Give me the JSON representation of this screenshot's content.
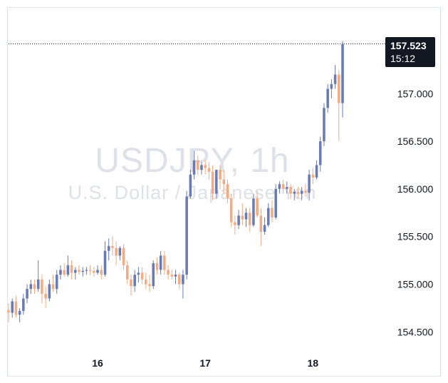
{
  "chart_data": {
    "type": "candlestick",
    "title": "USDJPY, 1h",
    "subtitle": "U.S. Dollar / Japanese Yen",
    "ylim": [
      154.3,
      157.9
    ],
    "y_ticks": [
      "154.500",
      "155.000",
      "155.500",
      "156.000",
      "156.500",
      "157.000"
    ],
    "x_tick_labels": [
      {
        "label": "16",
        "index": 24
      },
      {
        "label": "17",
        "index": 53
      },
      {
        "label": "18",
        "index": 82
      }
    ],
    "last_price": "157.523",
    "countdown": "15:12",
    "up_color": "#6a7bb4",
    "down_color": "#f2ab84",
    "candles": [
      [
        154.73,
        154.8,
        154.6,
        154.7
      ],
      [
        154.7,
        154.85,
        154.65,
        154.82
      ],
      [
        154.82,
        154.88,
        154.65,
        154.68
      ],
      [
        154.68,
        154.75,
        154.6,
        154.72
      ],
      [
        154.72,
        154.9,
        154.68,
        154.85
      ],
      [
        154.85,
        155.0,
        154.8,
        154.95
      ],
      [
        154.95,
        155.05,
        154.9,
        155.0
      ],
      [
        155.0,
        155.05,
        154.9,
        154.95
      ],
      [
        154.95,
        155.25,
        154.92,
        155.05
      ],
      [
        155.05,
        155.1,
        154.8,
        154.9
      ],
      [
        154.9,
        154.98,
        154.75,
        154.85
      ],
      [
        154.85,
        155.05,
        154.82,
        155.0
      ],
      [
        155.0,
        155.1,
        154.92,
        154.95
      ],
      [
        154.95,
        155.15,
        154.9,
        155.1
      ],
      [
        155.1,
        155.2,
        155.05,
        155.15
      ],
      [
        155.15,
        155.22,
        155.08,
        155.1
      ],
      [
        155.1,
        155.3,
        155.08,
        155.2
      ],
      [
        155.2,
        155.25,
        155.05,
        155.12
      ],
      [
        155.12,
        155.18,
        155.05,
        155.15
      ],
      [
        155.15,
        155.2,
        155.1,
        155.13
      ],
      [
        155.13,
        155.18,
        155.08,
        155.14
      ],
      [
        155.14,
        155.18,
        155.1,
        155.15
      ],
      [
        155.15,
        155.2,
        155.1,
        155.14
      ],
      [
        155.14,
        155.18,
        155.08,
        155.12
      ],
      [
        155.12,
        155.2,
        155.1,
        155.15
      ],
      [
        155.15,
        155.2,
        155.05,
        155.1
      ],
      [
        155.1,
        155.45,
        155.08,
        155.35
      ],
      [
        155.35,
        155.48,
        155.25,
        155.4
      ],
      [
        155.4,
        155.5,
        155.3,
        155.38
      ],
      [
        155.38,
        155.45,
        155.2,
        155.3
      ],
      [
        155.3,
        155.4,
        155.25,
        155.38
      ],
      [
        155.38,
        155.42,
        155.15,
        155.2
      ],
      [
        155.2,
        155.25,
        155.0,
        155.05
      ],
      [
        155.05,
        155.1,
        154.88,
        154.98
      ],
      [
        154.98,
        155.15,
        154.92,
        155.1
      ],
      [
        155.1,
        155.18,
        155.02,
        155.12
      ],
      [
        155.12,
        155.18,
        155.0,
        155.05
      ],
      [
        155.05,
        155.12,
        154.95,
        155.0
      ],
      [
        155.0,
        155.1,
        154.92,
        154.98
      ],
      [
        154.98,
        155.25,
        154.95,
        155.22
      ],
      [
        155.22,
        155.28,
        155.1,
        155.15
      ],
      [
        155.15,
        155.35,
        155.1,
        155.3
      ],
      [
        155.3,
        155.35,
        155.1,
        155.15
      ],
      [
        155.15,
        155.2,
        155.05,
        155.1
      ],
      [
        155.1,
        155.15,
        155.05,
        155.08
      ],
      [
        155.08,
        155.15,
        155.0,
        155.1
      ],
      [
        155.1,
        155.12,
        154.95,
        155.0
      ],
      [
        155.0,
        155.15,
        154.85,
        155.1
      ],
      [
        155.1,
        155.98,
        155.05,
        155.92
      ],
      [
        155.92,
        156.2,
        155.9,
        156.15
      ],
      [
        156.15,
        156.4,
        156.1,
        156.3
      ],
      [
        156.3,
        156.35,
        156.15,
        156.2
      ],
      [
        156.2,
        156.28,
        156.15,
        156.25
      ],
      [
        156.25,
        156.3,
        156.15,
        156.22
      ],
      [
        156.22,
        156.28,
        156.1,
        156.18
      ],
      [
        156.18,
        156.25,
        155.88,
        155.95
      ],
      [
        155.95,
        156.2,
        155.9,
        156.2
      ],
      [
        156.2,
        156.25,
        156.0,
        156.1
      ],
      [
        156.1,
        156.2,
        155.95,
        156.05
      ],
      [
        156.05,
        156.1,
        155.85,
        155.9
      ],
      [
        155.9,
        155.95,
        155.6,
        155.65
      ],
      [
        155.65,
        155.72,
        155.52,
        155.62
      ],
      [
        155.62,
        155.78,
        155.58,
        155.72
      ],
      [
        155.72,
        155.85,
        155.62,
        155.68
      ],
      [
        155.68,
        155.8,
        155.6,
        155.75
      ],
      [
        155.75,
        155.8,
        155.55,
        155.62
      ],
      [
        155.62,
        155.95,
        155.6,
        155.9
      ],
      [
        155.9,
        155.98,
        155.7,
        155.72
      ],
      [
        155.72,
        155.8,
        155.4,
        155.55
      ],
      [
        155.55,
        155.7,
        155.52,
        155.62
      ],
      [
        155.62,
        155.85,
        155.6,
        155.8
      ],
      [
        155.8,
        155.88,
        155.65,
        155.7
      ],
      [
        155.7,
        156.05,
        155.68,
        156.0
      ],
      [
        156.0,
        156.08,
        155.95,
        156.05
      ],
      [
        156.05,
        156.1,
        155.95,
        156.0
      ],
      [
        156.0,
        156.08,
        155.95,
        156.02
      ],
      [
        156.02,
        156.05,
        155.9,
        155.95
      ],
      [
        155.95,
        156.0,
        155.88,
        155.97
      ],
      [
        155.97,
        156.02,
        155.9,
        155.95
      ],
      [
        155.95,
        156.02,
        155.88,
        155.98
      ],
      [
        155.98,
        156.05,
        155.92,
        155.96
      ],
      [
        155.96,
        156.2,
        155.88,
        156.15
      ],
      [
        156.15,
        156.22,
        156.05,
        156.12
      ],
      [
        156.12,
        156.3,
        156.1,
        156.25
      ],
      [
        156.25,
        156.55,
        156.18,
        156.5
      ],
      [
        156.5,
        156.9,
        156.45,
        156.85
      ],
      [
        156.85,
        157.1,
        156.8,
        157.05
      ],
      [
        157.05,
        157.15,
        156.95,
        157.1
      ],
      [
        157.1,
        157.3,
        157.05,
        157.2
      ],
      [
        157.2,
        157.25,
        156.5,
        156.9
      ],
      [
        156.9,
        157.55,
        156.75,
        157.52
      ]
    ]
  }
}
